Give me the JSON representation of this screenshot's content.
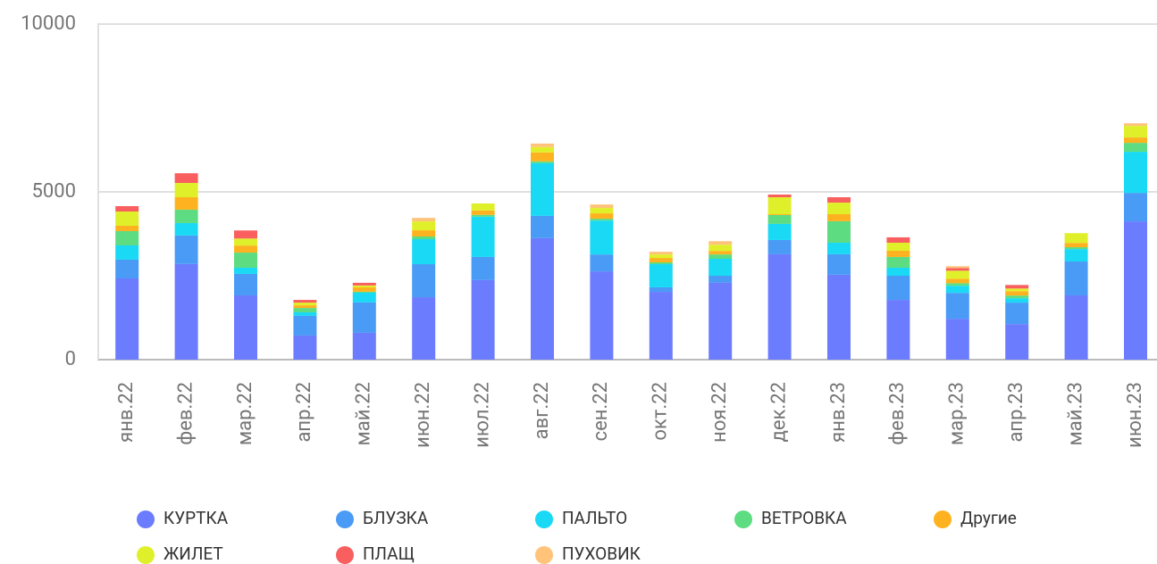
{
  "chart_data": {
    "type": "stacked_bar",
    "categories": [
      "янв.22",
      "фев.22",
      "мар.22",
      "апр.22",
      "май.22",
      "июн.22",
      "июл.22",
      "авг.22",
      "сен.22",
      "окт.22",
      "ноя.22",
      "дек.22",
      "янв.23",
      "фев.23",
      "мар.23",
      "апр.23",
      "май.23",
      "июн.23"
    ],
    "series": [
      {
        "name": "КУРТКА",
        "color": "#6b7cff",
        "values": [
          2420,
          2850,
          1915,
          720,
          800,
          1860,
          2370,
          3620,
          2630,
          2020,
          2290,
          3140,
          2530,
          1780,
          1220,
          1060,
          1915,
          4120
        ]
      },
      {
        "name": "БЛУЗКА",
        "color": "#4a9bf5",
        "values": [
          560,
          850,
          640,
          585,
          905,
          985,
          690,
          665,
          505,
          135,
          210,
          425,
          610,
          720,
          770,
          640,
          1010,
          850
        ]
      },
      {
        "name": "ПАЛЬТО",
        "color": "#1ad9f5",
        "values": [
          425,
          370,
          185,
          105,
          290,
          745,
          1200,
          1570,
          1010,
          690,
          505,
          480,
          345,
          240,
          210,
          130,
          370,
          1225
        ]
      },
      {
        "name": "ВЕТРОВКА",
        "color": "#5ddc82",
        "values": [
          425,
          400,
          450,
          130,
          30,
          80,
          55,
          55,
          55,
          55,
          130,
          265,
          640,
          320,
          80,
          80,
          55,
          265
        ]
      },
      {
        "name": "Другие",
        "color": "#ffb21f",
        "values": [
          160,
          370,
          210,
          80,
          130,
          185,
          130,
          265,
          160,
          130,
          105,
          25,
          210,
          185,
          130,
          130,
          130,
          160
        ]
      },
      {
        "name": "ЖИЛЕТ",
        "color": "#dff02a",
        "values": [
          425,
          425,
          210,
          80,
          55,
          265,
          210,
          160,
          160,
          105,
          185,
          505,
          345,
          240,
          240,
          80,
          290,
          345
        ]
      },
      {
        "name": "ПЛАЩ",
        "color": "#f95f5f",
        "values": [
          160,
          290,
          240,
          80,
          80,
          0,
          0,
          0,
          0,
          0,
          0,
          80,
          160,
          160,
          80,
          105,
          0,
          0
        ]
      },
      {
        "name": "ПУХОВИК",
        "color": "#ffc47a",
        "values": [
          0,
          0,
          0,
          0,
          0,
          105,
          0,
          105,
          105,
          80,
          105,
          0,
          0,
          0,
          55,
          0,
          0,
          80
        ]
      }
    ],
    "ylim": [
      0,
      10000
    ],
    "yticks": [
      0,
      5000,
      10000
    ],
    "grid": true
  }
}
